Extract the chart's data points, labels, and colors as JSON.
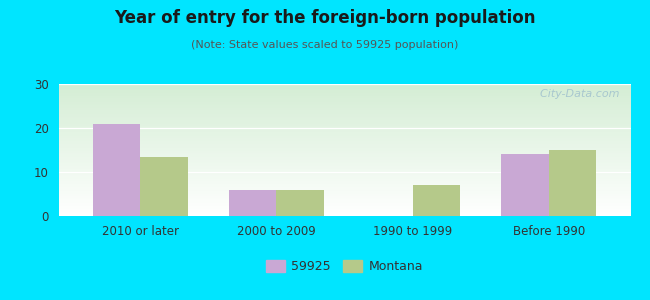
{
  "title": "Year of entry for the foreign-born population",
  "subtitle": "(Note: State values scaled to 59925 population)",
  "categories": [
    "2010 or later",
    "2000 to 2009",
    "1990 to 1999",
    "Before 1990"
  ],
  "series_59925": [
    21,
    6,
    0,
    14
  ],
  "series_montana": [
    13.5,
    6,
    7,
    15
  ],
  "bar_color_59925": "#c9a8d4",
  "bar_color_montana": "#b5c98a",
  "background_outer": "#00e5ff",
  "ylim": [
    0,
    30
  ],
  "yticks": [
    0,
    10,
    20,
    30
  ],
  "legend_label_59925": "59925",
  "legend_label_montana": "Montana",
  "bar_width": 0.35,
  "watermark": "  City-Data.com"
}
